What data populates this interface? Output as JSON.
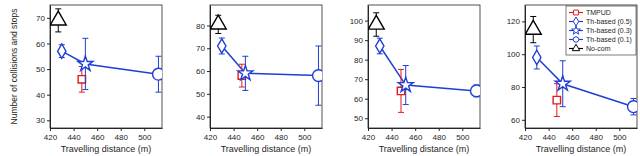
{
  "chart_data": [
    {
      "type": "line",
      "x_label": "Travelling distance (m)",
      "y_label": "Number of collisions and stops",
      "xlim": [
        420,
        515
      ],
      "xticks": [
        420,
        440,
        460,
        480,
        500
      ],
      "ylim": [
        27,
        75
      ],
      "yticks": [
        30,
        40,
        50,
        60,
        70
      ],
      "series": [
        {
          "type": "scatter",
          "color": "#e41a1c",
          "marker": "square",
          "x": [
            447
          ],
          "values": [
            46
          ],
          "error": [
            5
          ]
        },
        {
          "type": "line",
          "color": "#1f3fd6",
          "marker": "diamond",
          "x": [
            430
          ],
          "values": [
            57
          ],
          "error": [
            2.5
          ]
        },
        {
          "type": "line",
          "color": "#1f3fd6",
          "marker": "star",
          "x": [
            450
          ],
          "values": [
            52
          ],
          "error": [
            10
          ]
        },
        {
          "type": "line",
          "color": "#1f3fd6",
          "marker": "circle",
          "x": [
            512
          ],
          "values": [
            48
          ],
          "error": [
            7
          ]
        },
        {
          "type": "scatter",
          "color": "#000000",
          "marker": "triangle",
          "x": [
            427
          ],
          "values": [
            69
          ],
          "error": [
            4.5
          ]
        }
      ]
    },
    {
      "type": "line",
      "x_label": "Travelling distance (m)",
      "xlim": [
        420,
        515
      ],
      "xticks": [
        420,
        440,
        460,
        480,
        500
      ],
      "ylim": [
        35,
        89
      ],
      "yticks": [
        40,
        50,
        60,
        70,
        80
      ],
      "series": [
        {
          "type": "scatter",
          "color": "#e41a1c",
          "marker": "square",
          "x": [
            447
          ],
          "values": [
            58
          ],
          "error": [
            5
          ]
        },
        {
          "type": "line",
          "color": "#1f3fd6",
          "marker": "diamond",
          "x": [
            430
          ],
          "values": [
            71
          ],
          "error": [
            3.5
          ]
        },
        {
          "type": "line",
          "color": "#1f3fd6",
          "marker": "star",
          "x": [
            450
          ],
          "values": [
            59
          ],
          "error": [
            7.5
          ]
        },
        {
          "type": "line",
          "color": "#1f3fd6",
          "marker": "circle",
          "x": [
            512
          ],
          "values": [
            58
          ],
          "error": [
            13
          ]
        },
        {
          "type": "scatter",
          "color": "#000000",
          "marker": "triangle",
          "x": [
            427
          ],
          "values": [
            80.5
          ],
          "error": [
            4
          ]
        }
      ]
    },
    {
      "type": "line",
      "x_label": "Travelling distance (m)",
      "xlim": [
        420,
        515
      ],
      "xticks": [
        420,
        440,
        460,
        480,
        500
      ],
      "ylim": [
        45,
        108
      ],
      "yticks": [
        50,
        60,
        70,
        80,
        90,
        100
      ],
      "series": [
        {
          "type": "scatter",
          "color": "#e41a1c",
          "marker": "square",
          "x": [
            448
          ],
          "values": [
            64
          ],
          "error": [
            11
          ]
        },
        {
          "type": "line",
          "color": "#1f3fd6",
          "marker": "diamond",
          "x": [
            430
          ],
          "values": [
            87
          ],
          "error": [
            4
          ]
        },
        {
          "type": "line",
          "color": "#1f3fd6",
          "marker": "star",
          "x": [
            452
          ],
          "values": [
            67
          ],
          "error": [
            10
          ]
        },
        {
          "type": "line",
          "color": "#1f3fd6",
          "marker": "circle",
          "x": [
            512
          ],
          "values": [
            64
          ],
          "error": [
            3
          ]
        },
        {
          "type": "scatter",
          "color": "#000000",
          "marker": "triangle",
          "x": [
            427
          ],
          "values": [
            98
          ],
          "error": [
            6
          ]
        }
      ]
    },
    {
      "type": "line",
      "x_label": "Travelling distance (m)",
      "xlim": [
        420,
        515
      ],
      "xticks": [
        420,
        440,
        460,
        480,
        500
      ],
      "ylim": [
        55,
        130
      ],
      "yticks": [
        60,
        80,
        100,
        120
      ],
      "legend": "upper right",
      "series": [
        {
          "name": "TMPUD",
          "type": "scatter",
          "color": "#e41a1c",
          "marker": "square",
          "x": [
            447
          ],
          "values": [
            72
          ],
          "error": [
            10
          ]
        },
        {
          "name": "Th-based (0.5)",
          "type": "line",
          "color": "#1f3fd6",
          "marker": "diamond",
          "x": [
            430
          ],
          "values": [
            98
          ],
          "error": [
            7
          ]
        },
        {
          "name": "Th-based (0.3)",
          "type": "line",
          "color": "#1f3fd6",
          "marker": "star",
          "x": [
            452
          ],
          "values": [
            82
          ],
          "error": [
            14
          ]
        },
        {
          "name": "Th-based (0.1)",
          "type": "line",
          "color": "#1f3fd6",
          "marker": "circle",
          "x": [
            512
          ],
          "values": [
            68
          ],
          "error": [
            5
          ]
        },
        {
          "name": "No-com",
          "type": "scatter",
          "color": "#000000",
          "marker": "triangle",
          "x": [
            427
          ],
          "values": [
            115
          ],
          "error": [
            8
          ]
        }
      ]
    }
  ]
}
